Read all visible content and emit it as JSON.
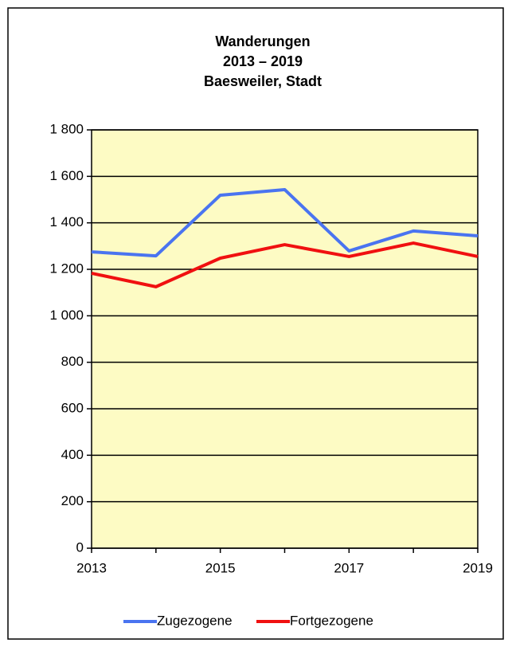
{
  "chart_data": {
    "type": "line",
    "title": [
      "Wanderungen",
      "2013 – 2019",
      "Baesweiler, Stadt"
    ],
    "categories": [
      "2013",
      null,
      "2015",
      null,
      "2017",
      null,
      "2019"
    ],
    "series": [
      {
        "name": "Zugezogene",
        "color": "#4a74f0",
        "values": [
          1275,
          1258,
          1519,
          1543,
          1279,
          1365,
          1344
        ]
      },
      {
        "name": "Fortgezogene",
        "color": "#f01010",
        "values": [
          1183,
          1125,
          1248,
          1306,
          1255,
          1313,
          1255
        ]
      }
    ],
    "ylim": [
      0,
      1800
    ],
    "yticks": [
      0,
      200,
      400,
      600,
      800,
      {
        "value": 1000,
        "label": "1 000"
      },
      {
        "value": 1200,
        "label": "1 200"
      },
      {
        "value": 1400,
        "label": "1 400"
      },
      {
        "value": 1600,
        "label": "1 600"
      },
      {
        "value": 1800,
        "label": "1 800"
      }
    ],
    "grid": true,
    "legend": "bottom",
    "plot_background": "#fdfbc4"
  }
}
